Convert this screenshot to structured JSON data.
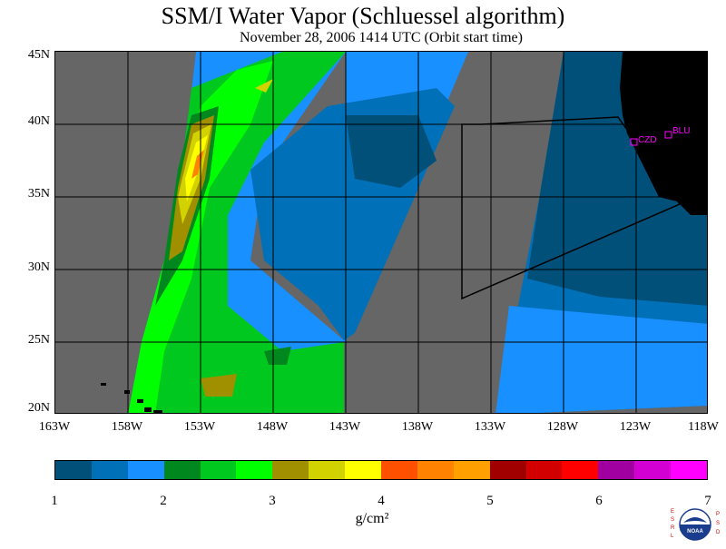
{
  "title": "SSM/I Water Vapor (Schluessel algorithm)",
  "subtitle": "November 28, 2006  1414 UTC  (Orbit start time)",
  "map": {
    "lat_labels": [
      "45N",
      "40N",
      "35N",
      "30N",
      "25N",
      "20N"
    ],
    "lon_labels": [
      "163W",
      "158W",
      "153W",
      "148W",
      "143W",
      "138W",
      "133W",
      "128W",
      "123W",
      "118W"
    ],
    "stations": [
      "CZD",
      "BLU"
    ],
    "land_color": "#000000",
    "no_data_color": "#666666"
  },
  "colorbar": {
    "colors": [
      "#00507a",
      "#0070b8",
      "#1890ff",
      "#00881e",
      "#00c81e",
      "#00ff00",
      "#a09000",
      "#d2d200",
      "#ffff00",
      "#ff5000",
      "#ff8200",
      "#ffa000",
      "#a00000",
      "#d20000",
      "#ff0000",
      "#a000a0",
      "#d200d2",
      "#ff00ff"
    ],
    "tick_labels": [
      "1",
      "2",
      "3",
      "4",
      "5",
      "6",
      "7"
    ],
    "units": "g/cm²"
  },
  "logo": {
    "left_text": "ESRL",
    "right_text": "PSD",
    "center_text": "NOAA"
  }
}
